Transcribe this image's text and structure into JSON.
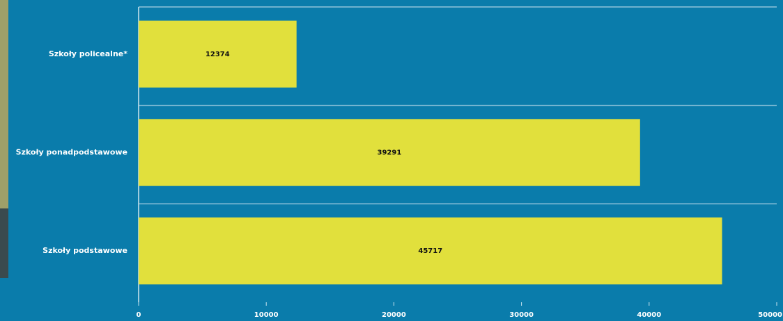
{
  "chart_data": {
    "type": "bar",
    "orientation": "horizontal",
    "categories": [
      "Szkoły policealne*",
      "Szkoły ponadpodstawowe",
      "Szkoły podstawowe"
    ],
    "values": [
      12374,
      39291,
      45717
    ],
    "color": "#e1e03c",
    "xlim": [
      0,
      50000
    ],
    "xticks": [
      0,
      10000,
      20000,
      30000,
      40000,
      50000
    ],
    "grid": true
  }
}
